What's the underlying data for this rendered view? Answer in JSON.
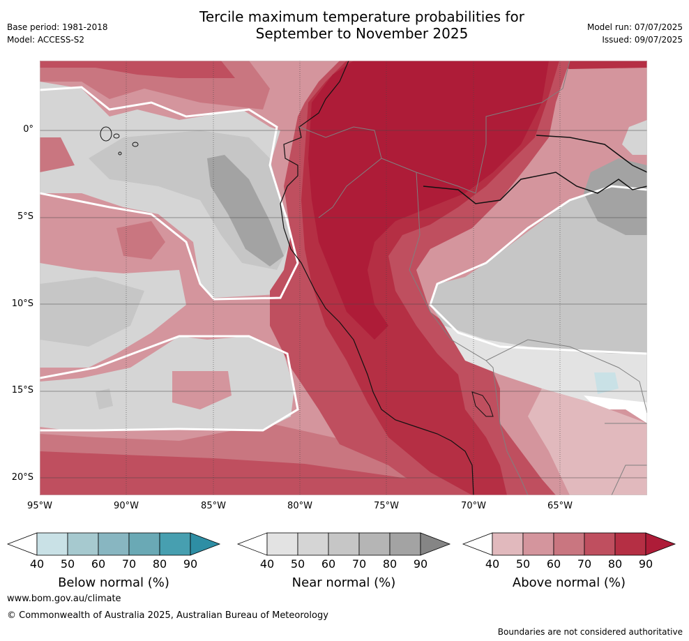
{
  "header": {
    "title_line1": "Tercile maximum temperature probabilities for",
    "title_line2": "September to November 2025",
    "base_period": "Base period: 1981-2018",
    "model": "Model: ACCESS-S2",
    "model_run": "Model run: 07/07/2025",
    "issued": "Issued: 09/07/2025"
  },
  "map": {
    "latitude_labels": [
      "0°",
      "5°S",
      "10°S",
      "15°S",
      "20°S"
    ],
    "longitude_labels": [
      "95°W",
      "90°W",
      "85°W",
      "80°W",
      "75°W",
      "70°W",
      "65°W"
    ],
    "extent": {
      "lon_min": -95,
      "lon_max": -60,
      "lat_min": -21,
      "lat_max": 4
    }
  },
  "legend": {
    "ticks": [
      "40",
      "50",
      "60",
      "70",
      "80",
      "90"
    ],
    "below": {
      "label": "Below normal (%)",
      "colors": [
        "#ffffff",
        "#c9e1e6",
        "#a6c9cf",
        "#88b6c1",
        "#6aa9b5",
        "#479fb0",
        "#2e8ea4"
      ]
    },
    "near": {
      "label": "Near normal (%)",
      "colors": [
        "#ffffff",
        "#e3e3e3",
        "#d5d5d5",
        "#c6c6c6",
        "#b5b5b5",
        "#a3a3a3",
        "#858585"
      ]
    },
    "above": {
      "label": "Above normal (%)",
      "colors": [
        "#ffffff",
        "#e1b9bd",
        "#d4959d",
        "#c97680",
        "#bf4f5f",
        "#b52f44",
        "#ae1c38"
      ]
    }
  },
  "footer": {
    "website": "www.bom.gov.au/climate",
    "copyright": "© Commonwealth of Australia 2025, Australian Bureau of Meteorology",
    "disclaimer": "Boundaries are not considered authoritative"
  }
}
